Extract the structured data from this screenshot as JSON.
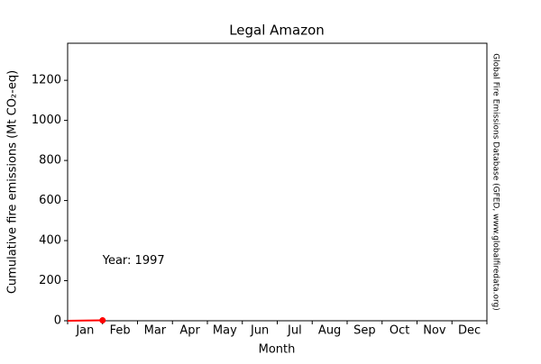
{
  "chart_data": {
    "type": "line",
    "title": "Legal Amazon",
    "x_label": "Month",
    "y_label": "Cumulative fire emissions (Mt CO₂-eq)",
    "side_note": "Global Fire Emissions Database (GFED, www.globalfiredata.org)",
    "categories": [
      "Jan",
      "Feb",
      "Mar",
      "Apr",
      "May",
      "Jun",
      "Jul",
      "Aug",
      "Sep",
      "Oct",
      "Nov",
      "Dec"
    ],
    "xlim": [
      0,
      12
    ],
    "ylim": [
      0,
      1385
    ],
    "yticks": [
      0,
      200,
      400,
      600,
      800,
      1000,
      1200
    ],
    "series": [
      {
        "name": "1997",
        "color": "#ff0000",
        "x": [
          0,
          0.5,
          1
        ],
        "values": [
          0,
          1,
          2
        ]
      }
    ],
    "annotation": {
      "text": "Year: 1997",
      "x": 1.0,
      "y": 300,
      "color": "#ff0000"
    }
  }
}
